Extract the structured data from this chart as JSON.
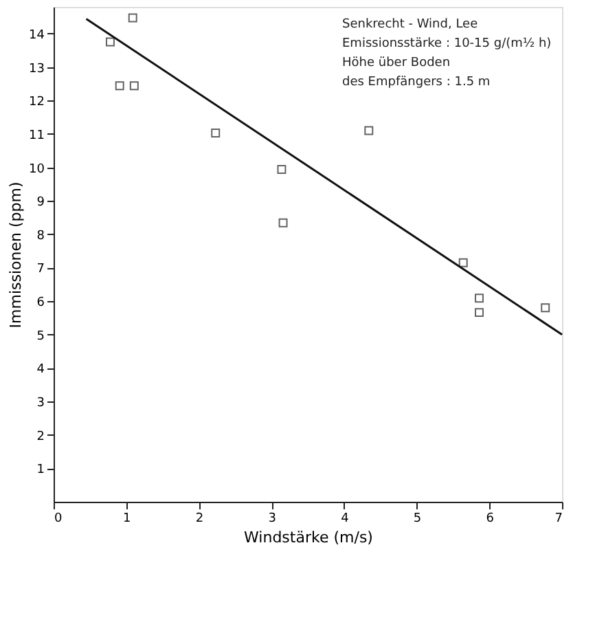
{
  "chart_data": {
    "type": "scatter",
    "xlabel": "Windstärke (m/s)",
    "ylabel": "Immissionen (ppm)",
    "xlim": [
      0,
      7
    ],
    "ylim": [
      0,
      14.8
    ],
    "xticks": [
      0,
      1,
      2,
      3,
      4,
      5,
      6,
      7
    ],
    "yticks": [
      1,
      2,
      3,
      4,
      5,
      6,
      7,
      8,
      9,
      10,
      11,
      12,
      13,
      14
    ],
    "grid": false,
    "series": [
      {
        "marker": "square",
        "color": "#222222",
        "x": [
          0.78,
          1.09,
          0.91,
          1.11,
          2.23,
          4.34,
          3.14,
          3.16,
          5.64,
          5.86,
          5.86,
          6.77
        ],
        "values": [
          13.75,
          14.47,
          12.44,
          12.44,
          11.03,
          11.1,
          9.94,
          8.34,
          7.15,
          6.09,
          5.66,
          5.8
        ]
      },
      {
        "type": "line",
        "color": "#111111",
        "x": [
          0.45,
          7.0
        ],
        "values": [
          14.44,
          5.0
        ]
      }
    ],
    "annotations": [
      "Senkrecht - Wind, Lee",
      "Emissionsstärke : 10-15 g/(m½ h)",
      "Höhe über Boden",
      "des Empfängers : 1.5 m"
    ]
  }
}
